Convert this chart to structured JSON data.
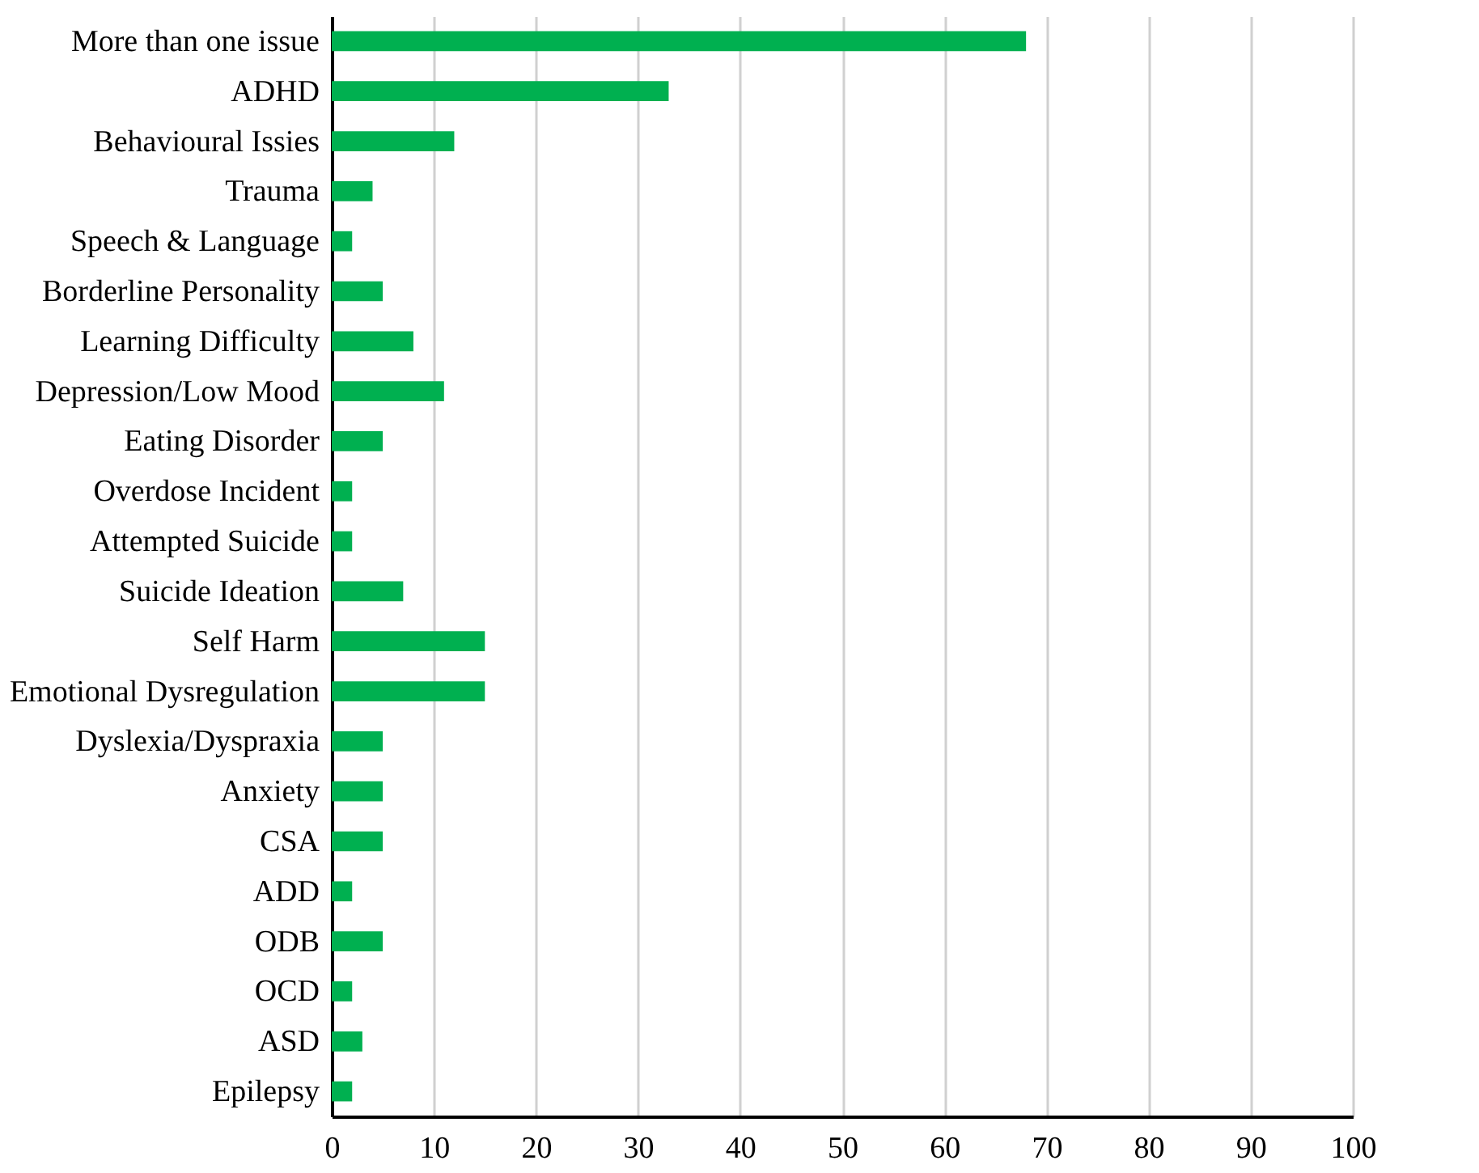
{
  "chart_data": {
    "type": "bar",
    "orientation": "horizontal",
    "categories": [
      "More than one issue",
      "ADHD",
      "Behavioural Issies",
      "Trauma",
      "Speech & Language",
      "Borderline Personality",
      "Learning Difficulty",
      "Depression/Low Mood",
      "Eating Disorder",
      "Overdose Incident",
      "Attempted Suicide",
      "Suicide Ideation",
      "Self Harm",
      "Emotional Dysregulation",
      "Dyslexia/Dyspraxia",
      "Anxiety",
      "CSA",
      "ADD",
      "ODB",
      "OCD",
      "ASD",
      "Epilepsy"
    ],
    "values": [
      68,
      33,
      12,
      4,
      2,
      5,
      8,
      11,
      5,
      2,
      2,
      7,
      15,
      15,
      5,
      5,
      5,
      2,
      5,
      2,
      3,
      2
    ],
    "color": "#00b050",
    "xlim": [
      0,
      100
    ],
    "xticks": [
      0,
      10,
      20,
      30,
      40,
      50,
      60,
      70,
      80,
      90,
      100
    ],
    "grid": "x"
  }
}
